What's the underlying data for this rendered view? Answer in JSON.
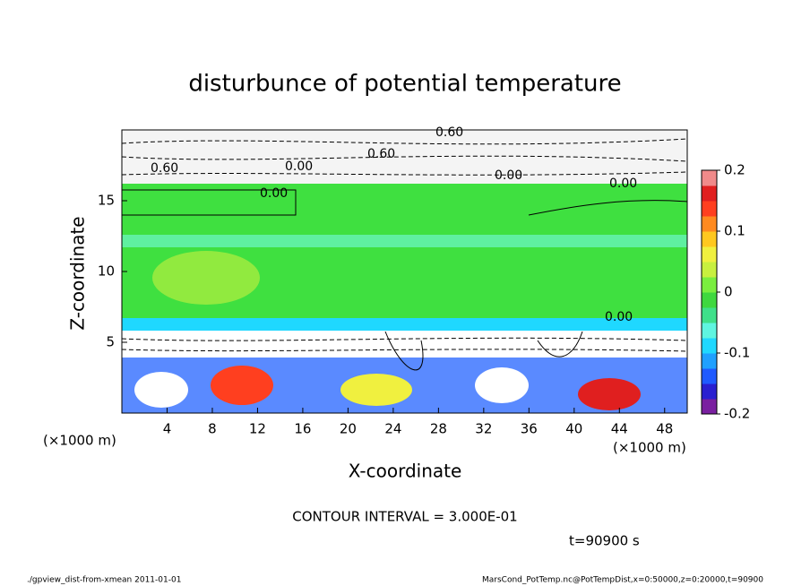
{
  "chart_data": {
    "type": "contour",
    "title": "disturbunce of potential temperature",
    "x_label": "X-coordinate",
    "y_label": "Z-coordinate",
    "x_unit": "(×1000 m)",
    "y_unit": "(×1000 m)",
    "xlim": [
      0,
      50
    ],
    "xticks": [
      4,
      8,
      12,
      16,
      20,
      24,
      28,
      32,
      36,
      40,
      44,
      48
    ],
    "ylim": [
      0,
      20
    ],
    "yticks": [
      5,
      10,
      15
    ],
    "colorbar": {
      "ylim": [
        -0.2,
        0.2
      ],
      "yticks": [
        -0.2,
        -0.1,
        0,
        0.1,
        0.2
      ],
      "colors": [
        "#7a1fa0",
        "#2a1fd0",
        "#1f5aff",
        "#1fa0ff",
        "#1fd8ff",
        "#5ff5e0",
        "#3fe08a",
        "#3fd83f",
        "#7aee3f",
        "#c8f03f",
        "#f0f03f",
        "#ffc81f",
        "#ff8a1f",
        "#ff3f1f",
        "#e01f1f",
        "#f08a8a"
      ]
    },
    "contour_labels": [
      "0.60",
      "0.00",
      "0.60",
      "0.00",
      "0.60",
      "0.00",
      "0.00",
      "0.00"
    ],
    "annotation": "CONTOUR INTERVAL = 3.000E-01",
    "time_label": "t=90900 s",
    "footer_left": "./gpview_dist-from-xmean  2011-01-01",
    "footer_right": "MarsCond_PotTemp.nc@PotTempDist,x=0:50000,z=0:20000,t=90900"
  }
}
